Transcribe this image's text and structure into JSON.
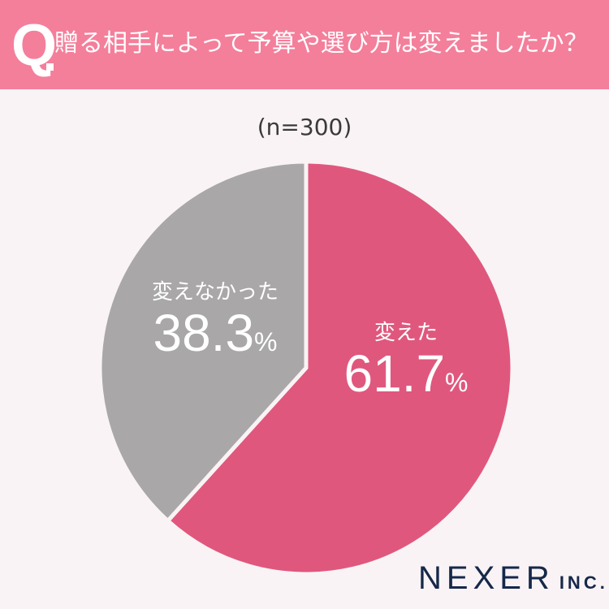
{
  "header": {
    "q_mark": "Q",
    "title": "贈る相手によって予算や選び方は変えましたか？",
    "color": "#f47f9b"
  },
  "sample_size": "(n=300)",
  "logo": {
    "name": "NEXER",
    "suffix": "INC."
  },
  "chart_data": {
    "type": "pie",
    "title": "贈る相手によって予算や選び方は変えましたか？",
    "subtitle": "(n=300)",
    "categories": [
      "変えた",
      "変えなかった"
    ],
    "values": [
      61.7,
      38.3
    ],
    "unit": "%",
    "colors": [
      "#e0577d",
      "#a9a7a8"
    ],
    "labels": [
      {
        "name": "変えた",
        "value": "61.7",
        "pct": "%"
      },
      {
        "name": "変えなかった",
        "value": "38.3",
        "pct": "%"
      }
    ]
  }
}
